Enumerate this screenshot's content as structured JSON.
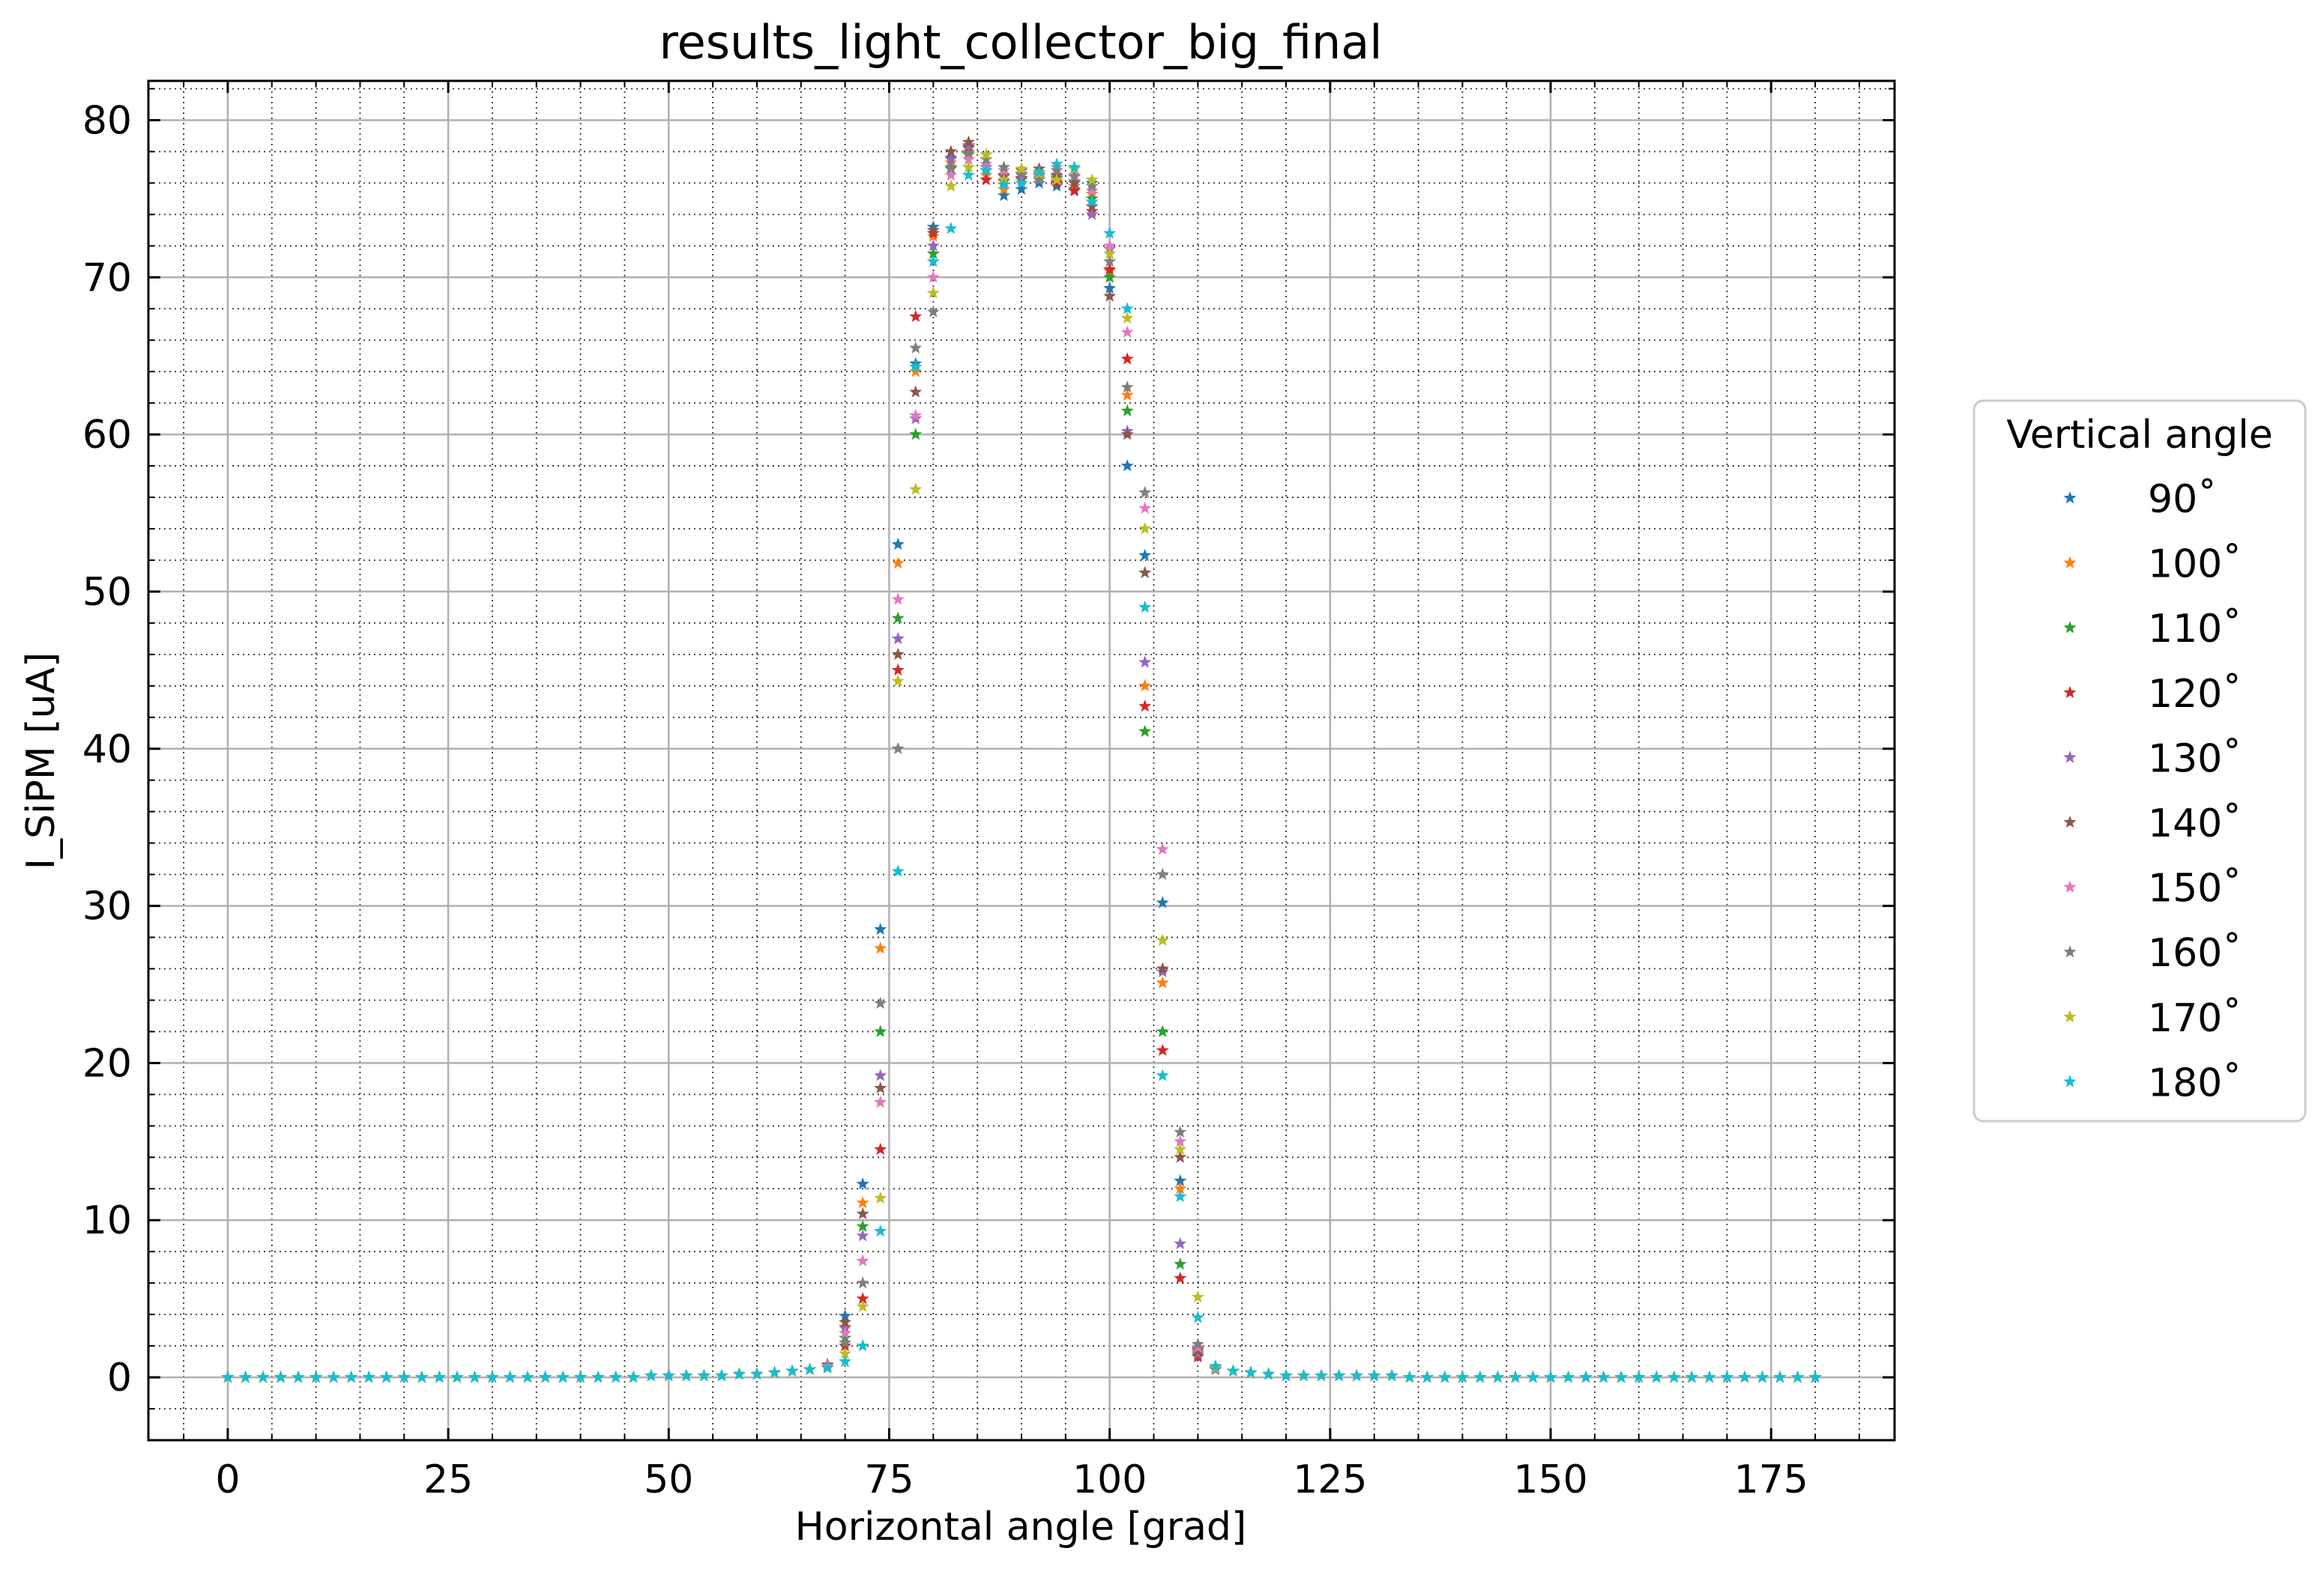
{
  "chart_data": {
    "type": "scatter",
    "title": "results_light_collector_big_final",
    "xlabel": "Horizontal angle [grad]",
    "ylabel": "I_SiPM [uA]",
    "xlim": [
      -9,
      189
    ],
    "ylim": [
      -4,
      82.5
    ],
    "xticks": [
      0,
      25,
      50,
      75,
      100,
      125,
      150,
      175
    ],
    "yticks": [
      0,
      10,
      20,
      30,
      40,
      50,
      60,
      70,
      80
    ],
    "grid": "major solid light gray, minor dotted",
    "marker": "star",
    "legend": {
      "title": "Vertical angle",
      "position": "outside right"
    },
    "x": [
      0,
      2,
      4,
      6,
      8,
      10,
      12,
      14,
      16,
      18,
      20,
      22,
      24,
      26,
      28,
      30,
      32,
      34,
      36,
      38,
      40,
      42,
      44,
      46,
      48,
      50,
      52,
      54,
      56,
      58,
      60,
      62,
      64,
      66,
      68,
      70,
      72,
      74,
      76,
      78,
      80,
      82,
      84,
      86,
      88,
      90,
      92,
      94,
      96,
      98,
      100,
      102,
      104,
      106,
      108,
      110,
      112,
      114,
      116,
      118,
      120,
      122,
      124,
      126,
      128,
      130,
      132,
      134,
      136,
      138,
      140,
      142,
      144,
      146,
      148,
      150,
      152,
      154,
      156,
      158,
      160,
      162,
      164,
      166,
      168,
      170,
      172,
      174,
      176,
      178,
      180
    ],
    "series": [
      {
        "name": "90˚",
        "color": "#1f77b4",
        "values": [
          0.0,
          0.0,
          0.0,
          0.0,
          0.0,
          0.0,
          0.0,
          0.0,
          0.0,
          0.0,
          0.0,
          0.0,
          0.0,
          0.0,
          0.0,
          0.0,
          0.0,
          0.0,
          0.0,
          0.0,
          0.0,
          0.0,
          0.0,
          0.0,
          0.1,
          0.1,
          0.1,
          0.1,
          0.1,
          0.2,
          0.2,
          0.3,
          0.4,
          0.5,
          0.8,
          3.9,
          12.3,
          28.5,
          53.0,
          64.5,
          73.2,
          77.6,
          78.2,
          76.8,
          75.2,
          75.6,
          76.0,
          75.8,
          75.6,
          76.0,
          69.3,
          58.0,
          52.3,
          30.2,
          12.5,
          1.8,
          0.6,
          0.4,
          0.3,
          0.2,
          0.1,
          0.1,
          0.1,
          0.1,
          0.1,
          0.1,
          0.1,
          0.0,
          0.0,
          0.0,
          0.0,
          0.0,
          0.0,
          0.0,
          0.0,
          0.0,
          0.0,
          0.0,
          0.0,
          0.0,
          0.0,
          0.0,
          0.0,
          0.0,
          0.0,
          0.0,
          0.0,
          0.0,
          0.0,
          0.0,
          0.0
        ]
      },
      {
        "name": "100˚",
        "color": "#ff7f0e",
        "values": [
          0.0,
          0.0,
          0.0,
          0.0,
          0.0,
          0.0,
          0.0,
          0.0,
          0.0,
          0.0,
          0.0,
          0.0,
          0.0,
          0.0,
          0.0,
          0.0,
          0.0,
          0.0,
          0.0,
          0.0,
          0.0,
          0.0,
          0.0,
          0.0,
          0.1,
          0.1,
          0.1,
          0.1,
          0.1,
          0.2,
          0.2,
          0.3,
          0.4,
          0.5,
          0.7,
          3.1,
          11.1,
          27.3,
          51.8,
          64.0,
          72.6,
          77.3,
          78.0,
          76.5,
          75.6,
          76.0,
          76.3,
          76.1,
          75.8,
          75.3,
          70.4,
          62.5,
          44.0,
          25.1,
          12.0,
          1.6,
          0.6,
          0.4,
          0.3,
          0.2,
          0.1,
          0.1,
          0.1,
          0.1,
          0.1,
          0.1,
          0.1,
          0.0,
          0.0,
          0.0,
          0.0,
          0.0,
          0.0,
          0.0,
          0.0,
          0.0,
          0.0,
          0.0,
          0.0,
          0.0,
          0.0,
          0.0,
          0.0,
          0.0,
          0.0,
          0.0,
          0.0,
          0.0,
          0.0,
          0.0,
          0.0
        ]
      },
      {
        "name": "110˚",
        "color": "#2ca02c",
        "values": [
          0.0,
          0.0,
          0.0,
          0.0,
          0.0,
          0.0,
          0.0,
          0.0,
          0.0,
          0.0,
          0.0,
          0.0,
          0.0,
          0.0,
          0.0,
          0.0,
          0.0,
          0.0,
          0.0,
          0.0,
          0.0,
          0.0,
          0.0,
          0.0,
          0.1,
          0.1,
          0.1,
          0.1,
          0.1,
          0.2,
          0.2,
          0.3,
          0.4,
          0.5,
          0.6,
          2.5,
          9.6,
          22.0,
          48.3,
          60.0,
          71.5,
          76.9,
          77.8,
          76.8,
          75.9,
          76.2,
          76.5,
          76.3,
          76.0,
          75.0,
          70.0,
          61.5,
          41.1,
          22.0,
          7.2,
          1.4,
          0.5,
          0.4,
          0.3,
          0.2,
          0.1,
          0.1,
          0.1,
          0.1,
          0.1,
          0.1,
          0.1,
          0.0,
          0.0,
          0.0,
          0.0,
          0.0,
          0.0,
          0.0,
          0.0,
          0.0,
          0.0,
          0.0,
          0.0,
          0.0,
          0.0,
          0.0,
          0.0,
          0.0,
          0.0,
          0.0,
          0.0,
          0.0,
          0.0,
          0.0,
          0.0
        ]
      },
      {
        "name": "120˚",
        "color": "#d62728",
        "values": [
          0.0,
          0.0,
          0.0,
          0.0,
          0.0,
          0.0,
          0.0,
          0.0,
          0.0,
          0.0,
          0.0,
          0.0,
          0.0,
          0.0,
          0.0,
          0.0,
          0.0,
          0.0,
          0.0,
          0.0,
          0.0,
          0.0,
          0.0,
          0.0,
          0.1,
          0.1,
          0.1,
          0.1,
          0.1,
          0.2,
          0.2,
          0.3,
          0.4,
          0.5,
          0.6,
          2.0,
          5.0,
          14.5,
          45.0,
          67.5,
          72.8,
          77.0,
          78.3,
          76.2,
          76.1,
          76.3,
          76.6,
          76.0,
          75.5,
          74.2,
          70.5,
          64.8,
          42.7,
          20.8,
          6.3,
          1.3,
          0.5,
          0.4,
          0.3,
          0.2,
          0.1,
          0.1,
          0.1,
          0.1,
          0.1,
          0.1,
          0.1,
          0.0,
          0.0,
          0.0,
          0.0,
          0.0,
          0.0,
          0.0,
          0.0,
          0.0,
          0.0,
          0.0,
          0.0,
          0.0,
          0.0,
          0.0,
          0.0,
          0.0,
          0.0,
          0.0,
          0.0,
          0.0,
          0.0,
          0.0,
          0.0
        ]
      },
      {
        "name": "130˚",
        "color": "#9467bd",
        "values": [
          0.0,
          0.0,
          0.0,
          0.0,
          0.0,
          0.0,
          0.0,
          0.0,
          0.0,
          0.0,
          0.0,
          0.0,
          0.0,
          0.0,
          0.0,
          0.0,
          0.0,
          0.0,
          0.0,
          0.0,
          0.0,
          0.0,
          0.0,
          0.0,
          0.1,
          0.1,
          0.1,
          0.1,
          0.1,
          0.2,
          0.2,
          0.3,
          0.4,
          0.5,
          0.7,
          3.2,
          9.0,
          19.2,
          47.0,
          61.0,
          72.0,
          77.5,
          78.4,
          77.0,
          76.4,
          76.5,
          76.7,
          76.4,
          76.1,
          74.0,
          71.8,
          60.2,
          45.5,
          25.8,
          8.5,
          1.5,
          0.5,
          0.4,
          0.3,
          0.2,
          0.1,
          0.1,
          0.1,
          0.1,
          0.1,
          0.1,
          0.1,
          0.0,
          0.0,
          0.0,
          0.0,
          0.0,
          0.0,
          0.0,
          0.0,
          0.0,
          0.0,
          0.0,
          0.0,
          0.0,
          0.0,
          0.0,
          0.0,
          0.0,
          0.0,
          0.0,
          0.0,
          0.0,
          0.0,
          0.0,
          0.0
        ]
      },
      {
        "name": "140˚",
        "color": "#8c564b",
        "values": [
          0.0,
          0.0,
          0.0,
          0.0,
          0.0,
          0.0,
          0.0,
          0.0,
          0.0,
          0.0,
          0.0,
          0.0,
          0.0,
          0.0,
          0.0,
          0.0,
          0.0,
          0.0,
          0.0,
          0.0,
          0.0,
          0.0,
          0.0,
          0.0,
          0.1,
          0.1,
          0.1,
          0.1,
          0.1,
          0.2,
          0.2,
          0.3,
          0.4,
          0.5,
          0.8,
          3.5,
          10.4,
          18.4,
          46.0,
          62.7,
          73.0,
          78.0,
          78.6,
          77.8,
          76.5,
          76.8,
          76.9,
          76.5,
          76.0,
          74.5,
          68.8,
          60.0,
          51.2,
          26.0,
          14.0,
          1.7,
          0.6,
          0.4,
          0.3,
          0.2,
          0.1,
          0.1,
          0.1,
          0.1,
          0.1,
          0.1,
          0.1,
          0.0,
          0.0,
          0.0,
          0.0,
          0.0,
          0.0,
          0.0,
          0.0,
          0.0,
          0.0,
          0.0,
          0.0,
          0.0,
          0.0,
          0.0,
          0.0,
          0.0,
          0.0,
          0.0,
          0.0,
          0.0,
          0.0,
          0.0,
          0.0
        ]
      },
      {
        "name": "150˚",
        "color": "#e377c2",
        "values": [
          0.0,
          0.0,
          0.0,
          0.0,
          0.0,
          0.0,
          0.0,
          0.0,
          0.0,
          0.0,
          0.0,
          0.0,
          0.0,
          0.0,
          0.0,
          0.0,
          0.0,
          0.0,
          0.0,
          0.0,
          0.0,
          0.0,
          0.0,
          0.0,
          0.1,
          0.1,
          0.1,
          0.1,
          0.1,
          0.2,
          0.2,
          0.3,
          0.4,
          0.5,
          0.7,
          2.8,
          7.4,
          17.5,
          49.5,
          61.2,
          70.0,
          76.5,
          77.5,
          77.2,
          76.8,
          76.0,
          76.4,
          77.0,
          76.5,
          75.5,
          72.0,
          66.5,
          55.3,
          33.6,
          15.0,
          1.9,
          0.6,
          0.4,
          0.3,
          0.2,
          0.1,
          0.1,
          0.1,
          0.1,
          0.1,
          0.1,
          0.1,
          0.0,
          0.0,
          0.0,
          0.0,
          0.0,
          0.0,
          0.0,
          0.0,
          0.0,
          0.0,
          0.0,
          0.0,
          0.0,
          0.0,
          0.0,
          0.0,
          0.0,
          0.0,
          0.0,
          0.0,
          0.0,
          0.0,
          0.0,
          0.0
        ]
      },
      {
        "name": "160˚",
        "color": "#7f7f7f",
        "values": [
          0.0,
          0.0,
          0.0,
          0.0,
          0.0,
          0.0,
          0.0,
          0.0,
          0.0,
          0.0,
          0.0,
          0.0,
          0.0,
          0.0,
          0.0,
          0.0,
          0.0,
          0.0,
          0.0,
          0.0,
          0.0,
          0.0,
          0.0,
          0.0,
          0.1,
          0.1,
          0.1,
          0.1,
          0.1,
          0.2,
          0.2,
          0.3,
          0.4,
          0.5,
          0.6,
          2.2,
          6.0,
          23.8,
          40.0,
          65.5,
          67.8,
          77.0,
          77.9,
          77.5,
          77.0,
          76.6,
          76.2,
          76.8,
          76.4,
          75.8,
          71.0,
          63.0,
          56.3,
          32.0,
          15.6,
          2.1,
          0.7,
          0.4,
          0.3,
          0.2,
          0.1,
          0.1,
          0.1,
          0.1,
          0.1,
          0.1,
          0.1,
          0.0,
          0.0,
          0.0,
          0.0,
          0.0,
          0.0,
          0.0,
          0.0,
          0.0,
          0.0,
          0.0,
          0.0,
          0.0,
          0.0,
          0.0,
          0.0,
          0.0,
          0.0,
          0.0,
          0.0,
          0.0,
          0.0,
          0.0,
          0.0
        ]
      },
      {
        "name": "170˚",
        "color": "#bcbd22",
        "values": [
          0.0,
          0.0,
          0.0,
          0.0,
          0.0,
          0.0,
          0.0,
          0.0,
          0.0,
          0.0,
          0.0,
          0.0,
          0.0,
          0.0,
          0.0,
          0.0,
          0.0,
          0.0,
          0.0,
          0.0,
          0.0,
          0.0,
          0.0,
          0.0,
          0.1,
          0.1,
          0.1,
          0.1,
          0.1,
          0.2,
          0.2,
          0.3,
          0.4,
          0.5,
          0.6,
          1.5,
          4.5,
          11.4,
          44.3,
          56.5,
          69.0,
          75.8,
          77.0,
          77.8,
          76.2,
          76.9,
          76.6,
          76.2,
          76.9,
          76.2,
          71.5,
          67.4,
          54.0,
          27.8,
          14.5,
          5.1,
          0.6,
          0.4,
          0.3,
          0.2,
          0.1,
          0.1,
          0.1,
          0.1,
          0.1,
          0.1,
          0.1,
          0.0,
          0.0,
          0.0,
          0.0,
          0.0,
          0.0,
          0.0,
          0.0,
          0.0,
          0.0,
          0.0,
          0.0,
          0.0,
          0.0,
          0.0,
          0.0,
          0.0,
          0.0,
          0.0,
          0.0,
          0.0,
          0.0,
          0.0,
          0.0
        ]
      },
      {
        "name": "180˚",
        "color": "#17becf",
        "values": [
          0.0,
          0.0,
          0.0,
          0.0,
          0.0,
          0.0,
          0.0,
          0.0,
          0.0,
          0.0,
          0.0,
          0.0,
          0.0,
          0.0,
          0.0,
          0.0,
          0.0,
          0.0,
          0.0,
          0.0,
          0.0,
          0.0,
          0.0,
          0.0,
          0.1,
          0.1,
          0.1,
          0.1,
          0.1,
          0.2,
          0.2,
          0.3,
          0.4,
          0.5,
          0.6,
          1.0,
          2.0,
          9.3,
          32.2,
          64.3,
          71.0,
          73.1,
          76.5,
          76.8,
          75.9,
          76.0,
          76.7,
          77.2,
          77.0,
          74.8,
          72.8,
          68.0,
          49.0,
          19.2,
          11.5,
          3.8,
          0.7,
          0.4,
          0.3,
          0.2,
          0.1,
          0.1,
          0.1,
          0.1,
          0.1,
          0.1,
          0.1,
          0.0,
          0.0,
          0.0,
          0.0,
          0.0,
          0.0,
          0.0,
          0.0,
          0.0,
          0.0,
          0.0,
          0.0,
          0.0,
          0.0,
          0.0,
          0.0,
          0.0,
          0.0,
          0.0,
          0.0,
          0.0,
          0.0,
          0.0,
          0.0
        ]
      }
    ]
  }
}
